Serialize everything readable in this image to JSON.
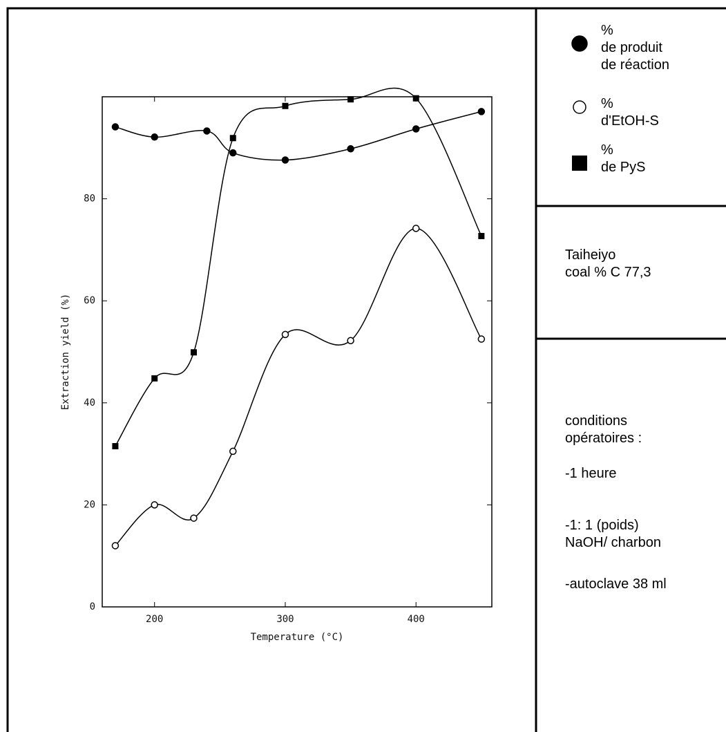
{
  "chart_data": {
    "type": "scatter",
    "xlabel": "Temperature (°C)",
    "ylabel": "Extraction yield (%)",
    "xlim": [
      160,
      458
    ],
    "ylim": [
      0,
      100
    ],
    "xticks": [
      200,
      300,
      400
    ],
    "yticks": [
      0,
      20,
      40,
      60,
      80
    ],
    "series": [
      {
        "name": "%\nde produit\nde réaction",
        "marker": "filled-circle",
        "color": "#000000",
        "x": [
          170,
          200,
          240,
          260,
          300,
          350,
          400,
          450
        ],
        "values": [
          94.1,
          92.1,
          93.3,
          89.0,
          87.6,
          89.8,
          93.7,
          97.1
        ]
      },
      {
        "name": "%\nd'EtOH-S",
        "marker": "open-circle",
        "color": "#000000",
        "x": [
          170,
          200,
          230,
          260,
          300,
          350,
          400,
          450
        ],
        "values": [
          12,
          20,
          17.4,
          30.5,
          53.4,
          52.2,
          74.2,
          52.5
        ]
      },
      {
        "name": "%\nde PyS",
        "marker": "square",
        "color": "#000000",
        "x": [
          170,
          200,
          230,
          260,
          300,
          350,
          400,
          450
        ],
        "values": [
          31.5,
          44.8,
          49.9,
          91.9,
          98.2,
          99.5,
          99.7,
          72.7
        ]
      }
    ]
  },
  "sample": "Taiheiyo\ncoal % C 77,3",
  "conditions": [
    "conditions\nopératoires :",
    "-1  heure",
    "-1: 1  (poids)\nNaOH/ charbon",
    "-autoclave  38  ml"
  ]
}
